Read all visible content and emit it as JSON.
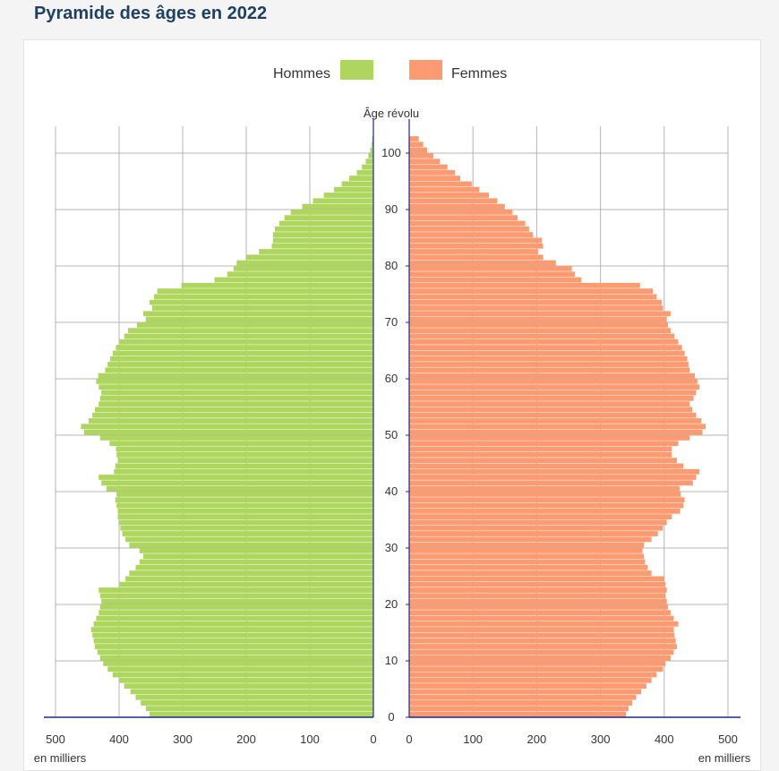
{
  "page": {
    "title": "Pyramide des âges en 2022"
  },
  "colors": {
    "hommes": "#aed65e",
    "femmes": "#fc9a72",
    "axis": "#1a2a8c",
    "grid": "#b4b4b4",
    "title": "#1f3f63"
  },
  "chart_data": {
    "type": "bar",
    "orientation": "horizontal-pyramid",
    "legend": {
      "placement": "top-center",
      "items": [
        {
          "name": "Hommes",
          "color": "#aed65e"
        },
        {
          "name": "Femmes",
          "color": "#fc9a72"
        }
      ]
    },
    "ylabel": "Âge révolu",
    "xlabel_left": "en milliers",
    "xlabel_right": "en milliers",
    "ylim": [
      0,
      105
    ],
    "y_ticks": [
      0,
      10,
      20,
      30,
      40,
      50,
      60,
      70,
      80,
      90,
      100
    ],
    "x_ticks_left": [
      500,
      400,
      300,
      200,
      100,
      0
    ],
    "x_ticks_right": [
      0,
      100,
      200,
      300,
      400,
      500
    ],
    "xlim": [
      0,
      500
    ],
    "grid": true,
    "ages": [
      0,
      1,
      2,
      3,
      4,
      5,
      6,
      7,
      8,
      9,
      10,
      11,
      12,
      13,
      14,
      15,
      16,
      17,
      18,
      19,
      20,
      21,
      22,
      23,
      24,
      25,
      26,
      27,
      28,
      29,
      30,
      31,
      32,
      33,
      34,
      35,
      36,
      37,
      38,
      39,
      40,
      41,
      42,
      43,
      44,
      45,
      46,
      47,
      48,
      49,
      50,
      51,
      52,
      53,
      54,
      55,
      56,
      57,
      58,
      59,
      60,
      61,
      62,
      63,
      64,
      65,
      66,
      67,
      68,
      69,
      70,
      71,
      72,
      73,
      74,
      75,
      76,
      77,
      78,
      79,
      80,
      81,
      82,
      83,
      84,
      85,
      86,
      87,
      88,
      89,
      90,
      91,
      92,
      93,
      94,
      95,
      96,
      97,
      98,
      99,
      100,
      101,
      102
    ],
    "series": [
      {
        "name": "Hommes",
        "values": [
          352,
          358,
          366,
          374,
          382,
          392,
          400,
          410,
          418,
          425,
          430,
          434,
          438,
          440,
          442,
          444,
          440,
          436,
          432,
          430,
          428,
          430,
          432,
          400,
          390,
          384,
          374,
          368,
          362,
          368,
          384,
          390,
          395,
          398,
          400,
          402,
          402,
          404,
          406,
          404,
          420,
          428,
          432,
          408,
          406,
          402,
          404,
          405,
          415,
          430,
          455,
          460,
          448,
          442,
          438,
          432,
          430,
          428,
          432,
          436,
          433,
          422,
          418,
          414,
          410,
          405,
          400,
          392,
          386,
          372,
          358,
          362,
          348,
          352,
          345,
          340,
          302,
          250,
          230,
          220,
          215,
          200,
          180,
          160,
          158,
          158,
          155,
          148,
          140,
          130,
          112,
          95,
          78,
          62,
          50,
          38,
          26,
          18,
          12,
          8,
          5,
          3,
          2
        ]
      },
      {
        "name": "Femmes",
        "values": [
          340,
          344,
          350,
          356,
          364,
          372,
          380,
          388,
          398,
          402,
          410,
          415,
          420,
          418,
          416,
          415,
          422,
          415,
          410,
          406,
          404,
          402,
          404,
          402,
          400,
          380,
          374,
          370,
          368,
          366,
          368,
          380,
          390,
          398,
          404,
          412,
          425,
          430,
          432,
          426,
          424,
          445,
          450,
          455,
          430,
          420,
          412,
          412,
          422,
          440,
          460,
          465,
          458,
          450,
          444,
          440,
          446,
          450,
          455,
          452,
          448,
          440,
          438,
          436,
          432,
          428,
          422,
          416,
          410,
          406,
          404,
          410,
          398,
          396,
          388,
          382,
          362,
          270,
          260,
          255,
          230,
          210,
          202,
          210,
          208,
          194,
          188,
          182,
          170,
          162,
          150,
          138,
          125,
          110,
          98,
          80,
          72,
          60,
          48,
          38,
          28,
          22,
          15
        ]
      }
    ]
  }
}
